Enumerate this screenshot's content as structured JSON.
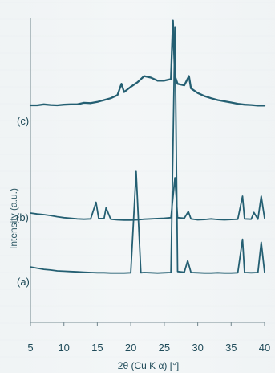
{
  "chart_data": {
    "type": "line",
    "xlabel": "2θ (Cu K α) [°]",
    "ylabel": "Intensity (a.u.)",
    "xlim": [
      5,
      40
    ],
    "xticks": [
      5,
      10,
      15,
      20,
      25,
      30,
      35,
      40
    ],
    "series": [
      {
        "name": "(c)",
        "x": [
          5,
          6,
          7,
          8,
          9,
          10,
          11,
          12,
          13,
          14,
          15,
          16,
          17,
          18,
          18.6,
          19,
          20,
          21,
          22,
          23,
          24,
          25,
          26,
          26.3,
          26.6,
          27,
          28,
          28.7,
          29,
          30,
          31,
          32,
          33,
          34,
          35,
          36,
          37,
          38,
          39,
          40
        ],
        "y": [
          0.705,
          0.705,
          0.708,
          0.706,
          0.705,
          0.707,
          0.708,
          0.708,
          0.713,
          0.712,
          0.716,
          0.722,
          0.728,
          0.738,
          0.775,
          0.748,
          0.765,
          0.78,
          0.8,
          0.795,
          0.785,
          0.785,
          0.79,
          0.98,
          0.8,
          0.775,
          0.77,
          0.8,
          0.76,
          0.745,
          0.735,
          0.728,
          0.722,
          0.718,
          0.714,
          0.71,
          0.707,
          0.706,
          0.704,
          0.704
        ],
        "color": "#245f72"
      },
      {
        "name": "(b)",
        "x": [
          5,
          6,
          7,
          8,
          9,
          10,
          11,
          12,
          13,
          14,
          14.8,
          15.2,
          16,
          16.3,
          17,
          18,
          19,
          20,
          21,
          22,
          23,
          24,
          25,
          26,
          26.6,
          27,
          28,
          28.6,
          29,
          30,
          31,
          32,
          33,
          34,
          35,
          36,
          36.7,
          37,
          38,
          38.4,
          39,
          39.5,
          40
        ],
        "y": [
          0.355,
          0.352,
          0.35,
          0.347,
          0.343,
          0.34,
          0.338,
          0.336,
          0.335,
          0.336,
          0.39,
          0.337,
          0.337,
          0.372,
          0.335,
          0.333,
          0.332,
          0.332,
          0.333,
          0.335,
          0.336,
          0.337,
          0.338,
          0.34,
          0.47,
          0.34,
          0.338,
          0.36,
          0.336,
          0.333,
          0.334,
          0.336,
          0.334,
          0.333,
          0.334,
          0.335,
          0.41,
          0.336,
          0.335,
          0.357,
          0.335,
          0.41,
          0.338
        ],
        "color": "#245f72"
      },
      {
        "name": "(a)",
        "x": [
          5,
          6,
          7,
          8,
          9,
          10,
          11,
          12,
          13,
          14,
          15,
          16,
          17,
          18,
          19,
          20,
          20.8,
          21.5,
          22,
          23,
          24,
          25,
          26,
          26.6,
          27,
          28,
          28.5,
          29,
          30,
          31,
          32,
          33,
          34,
          35,
          36,
          36.7,
          37,
          38,
          39,
          39.5,
          40
        ],
        "y": [
          0.18,
          0.176,
          0.172,
          0.17,
          0.167,
          0.166,
          0.165,
          0.164,
          0.163,
          0.162,
          0.161,
          0.161,
          0.16,
          0.16,
          0.16,
          0.161,
          0.49,
          0.161,
          0.162,
          0.161,
          0.16,
          0.161,
          0.162,
          0.96,
          0.165,
          0.163,
          0.2,
          0.162,
          0.161,
          0.16,
          0.16,
          0.161,
          0.16,
          0.16,
          0.161,
          0.27,
          0.162,
          0.161,
          0.162,
          0.26,
          0.163
        ],
        "color": "#245f72"
      }
    ],
    "grid": false,
    "legend": "none"
  }
}
